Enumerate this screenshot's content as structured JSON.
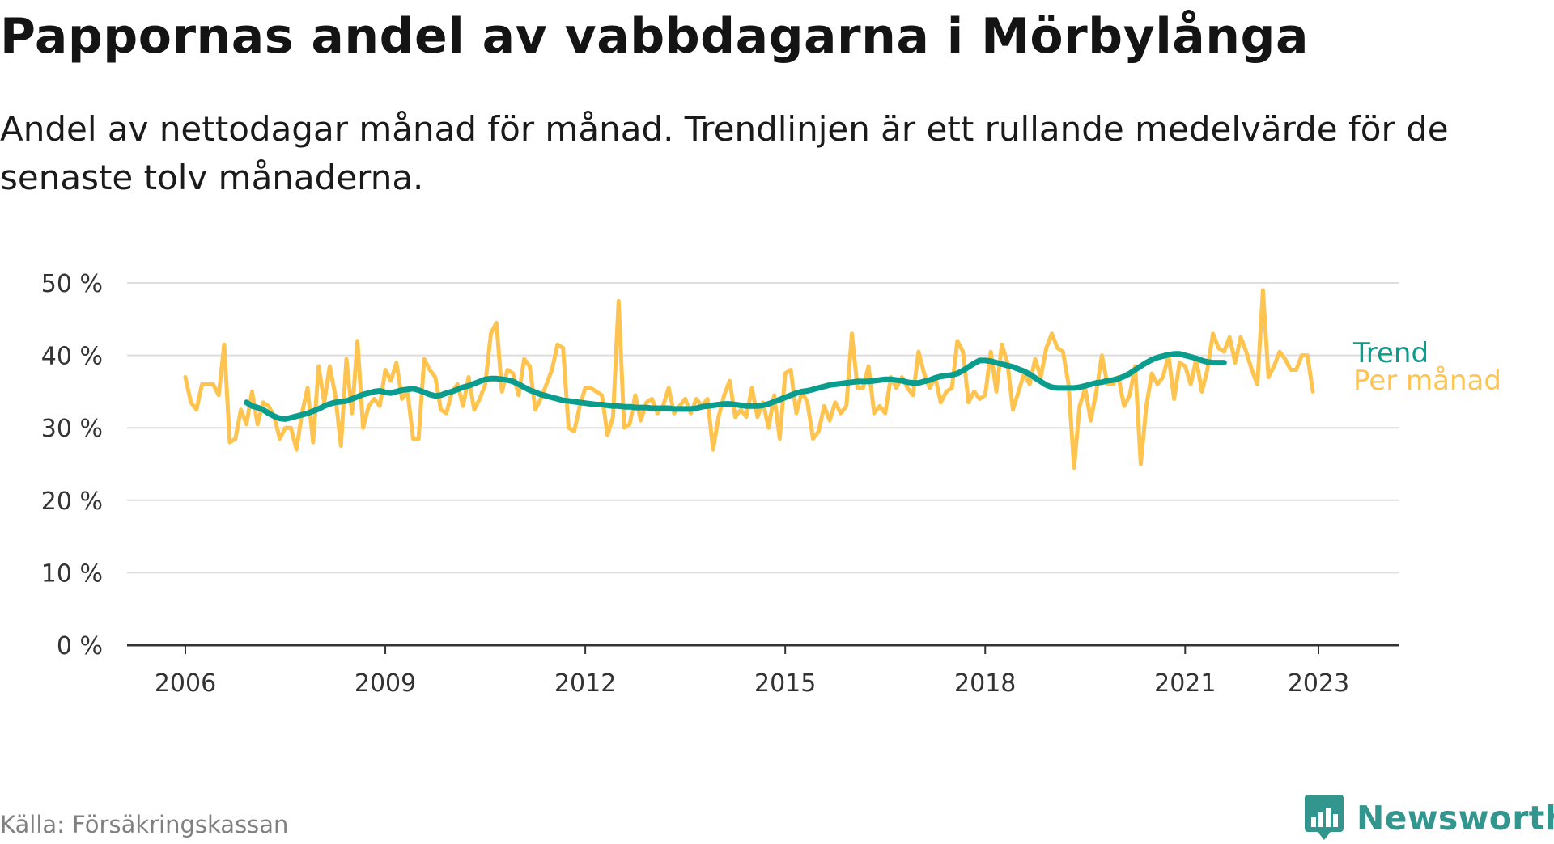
{
  "header": {
    "title": "Pappornas andel av vabbdagarna i Mörbylånga",
    "subtitle": "Andel av nettodagar månad för månad. Trendlinjen är ett rullande medelvärde för de senaste tolv månaderna."
  },
  "footer": {
    "source": "Källa: Försäkringskassan",
    "brand": "Newsworthy"
  },
  "colors": {
    "trend": "#0a9d8e",
    "monthly": "#fec44f",
    "grid": "#dddddd",
    "axis": "#333333",
    "brand": "#33968e"
  },
  "chart_data": {
    "type": "line",
    "x_axis": {
      "min": "2006-01",
      "max": "2024-02",
      "ticks": [
        "2006",
        "2009",
        "2012",
        "2015",
        "2018",
        "2021",
        "2023"
      ]
    },
    "y_axis": {
      "min": 0,
      "max": 50,
      "ticks": [
        "0 %",
        "10 %",
        "20 %",
        "30 %",
        "40 %",
        "50 %"
      ]
    },
    "grid": true,
    "series": [
      {
        "name": "Per månad",
        "color": "#fec44f",
        "start": "2006-01",
        "values": [
          37.0,
          33.5,
          32.5,
          36.0,
          36.0,
          36.0,
          34.5,
          41.5,
          28.0,
          28.5,
          32.5,
          30.5,
          35.0,
          30.5,
          33.5,
          33.0,
          31.5,
          28.5,
          30.0,
          30.0,
          27.0,
          32.0,
          35.5,
          28.0,
          38.5,
          33.5,
          38.5,
          34.5,
          27.5,
          39.5,
          32.0,
          42.0,
          30.0,
          33.0,
          34.0,
          33.0,
          38.0,
          36.5,
          39.0,
          34.0,
          35.0,
          28.5,
          28.5,
          39.5,
          38.0,
          37.0,
          32.5,
          32.0,
          35.0,
          36.0,
          33.0,
          37.0,
          32.5,
          34.0,
          36.0,
          43.0,
          44.5,
          35.0,
          38.0,
          37.5,
          34.5,
          39.5,
          38.5,
          32.5,
          34.0,
          36.0,
          38.0,
          41.5,
          41.0,
          30.0,
          29.5,
          33.0,
          35.5,
          35.5,
          35.0,
          34.5,
          29.0,
          31.5,
          47.5,
          30.0,
          30.5,
          34.5,
          31.0,
          33.5,
          34.0,
          32.0,
          33.0,
          35.5,
          32.0,
          33.0,
          34.0,
          32.0,
          34.0,
          33.0,
          34.0,
          27.0,
          31.5,
          34.5,
          36.5,
          31.5,
          32.5,
          31.5,
          35.5,
          31.5,
          33.5,
          30.0,
          34.5,
          28.5,
          37.5,
          38.0,
          32.0,
          35.0,
          33.5,
          28.5,
          29.5,
          33.0,
          31.0,
          33.5,
          32.0,
          33.0,
          43.0,
          35.5,
          35.5,
          38.5,
          32.0,
          33.0,
          32.0,
          37.0,
          35.5,
          37.0,
          35.5,
          34.5,
          40.5,
          37.5,
          35.5,
          37.0,
          33.5,
          35.0,
          35.5,
          42.0,
          40.5,
          33.5,
          35.0,
          34.0,
          34.5,
          40.5,
          35.0,
          41.5,
          39.0,
          32.5,
          35.0,
          37.5,
          36.0,
          39.5,
          37.0,
          41.0,
          43.0,
          41.0,
          40.5,
          36.0,
          24.5,
          33.0,
          35.5,
          31.0,
          35.0,
          40.0,
          36.0,
          36.0,
          37.0,
          33.0,
          34.5,
          38.5,
          25.0,
          33.0,
          37.5,
          36.0,
          37.0,
          40.0,
          34.0,
          39.0,
          38.5,
          36.0,
          39.5,
          35.0,
          38.0,
          43.0,
          41.0,
          40.5,
          42.5,
          39.0,
          42.5,
          40.5,
          38.0,
          36.0,
          49.0,
          37.0,
          38.5,
          40.5,
          39.5,
          38.0,
          38.0,
          40.0,
          40.0,
          35.0
        ],
        "dates_note": ""
      },
      {
        "name": "Trend",
        "color": "#0a9d8e",
        "start": "2006-12",
        "values": [
          33.5,
          33.0,
          32.8,
          32.5,
          32.0,
          31.6,
          31.3,
          31.2,
          31.4,
          31.6,
          31.8,
          32.0,
          32.3,
          32.6,
          33.0,
          33.3,
          33.5,
          33.6,
          33.7,
          34.0,
          34.3,
          34.6,
          34.8,
          35.0,
          35.1,
          34.9,
          34.8,
          35.0,
          35.2,
          35.3,
          35.4,
          35.2,
          34.9,
          34.6,
          34.4,
          34.5,
          34.8,
          35.0,
          35.3,
          35.6,
          35.8,
          36.1,
          36.4,
          36.7,
          36.8,
          36.8,
          36.7,
          36.6,
          36.4,
          36.0,
          35.6,
          35.2,
          34.9,
          34.6,
          34.4,
          34.2,
          34.0,
          33.8,
          33.7,
          33.6,
          33.5,
          33.4,
          33.3,
          33.2,
          33.2,
          33.1,
          33.0,
          33.0,
          32.9,
          32.9,
          32.8,
          32.8,
          32.8,
          32.7,
          32.7,
          32.7,
          32.7,
          32.6,
          32.6,
          32.6,
          32.6,
          32.7,
          32.9,
          33.0,
          33.1,
          33.2,
          33.3,
          33.3,
          33.2,
          33.1,
          33.0,
          33.0,
          33.0,
          33.1,
          33.3,
          33.6,
          33.9,
          34.2,
          34.5,
          34.8,
          35.0,
          35.1,
          35.3,
          35.5,
          35.7,
          35.9,
          36.0,
          36.1,
          36.2,
          36.3,
          36.4,
          36.4,
          36.4,
          36.5,
          36.6,
          36.7,
          36.7,
          36.6,
          36.5,
          36.3,
          36.2,
          36.2,
          36.4,
          36.6,
          36.9,
          37.1,
          37.2,
          37.3,
          37.5,
          37.9,
          38.4,
          38.9,
          39.3,
          39.3,
          39.2,
          39.0,
          38.8,
          38.6,
          38.4,
          38.1,
          37.8,
          37.4,
          36.9,
          36.4,
          35.9,
          35.6,
          35.5,
          35.5,
          35.5,
          35.5,
          35.6,
          35.8,
          36.0,
          36.2,
          36.3,
          36.5,
          36.6,
          36.8,
          37.1,
          37.5,
          38.0,
          38.5,
          39.0,
          39.4,
          39.7,
          39.9,
          40.1,
          40.2,
          40.2,
          40.0,
          39.8,
          39.6,
          39.3,
          39.1,
          39.0,
          39.0,
          39.0
        ]
      }
    ],
    "legend": [
      {
        "label": "Trend",
        "color": "#0a9d8e"
      },
      {
        "label": "Per månad",
        "color": "#fec44f"
      }
    ]
  }
}
